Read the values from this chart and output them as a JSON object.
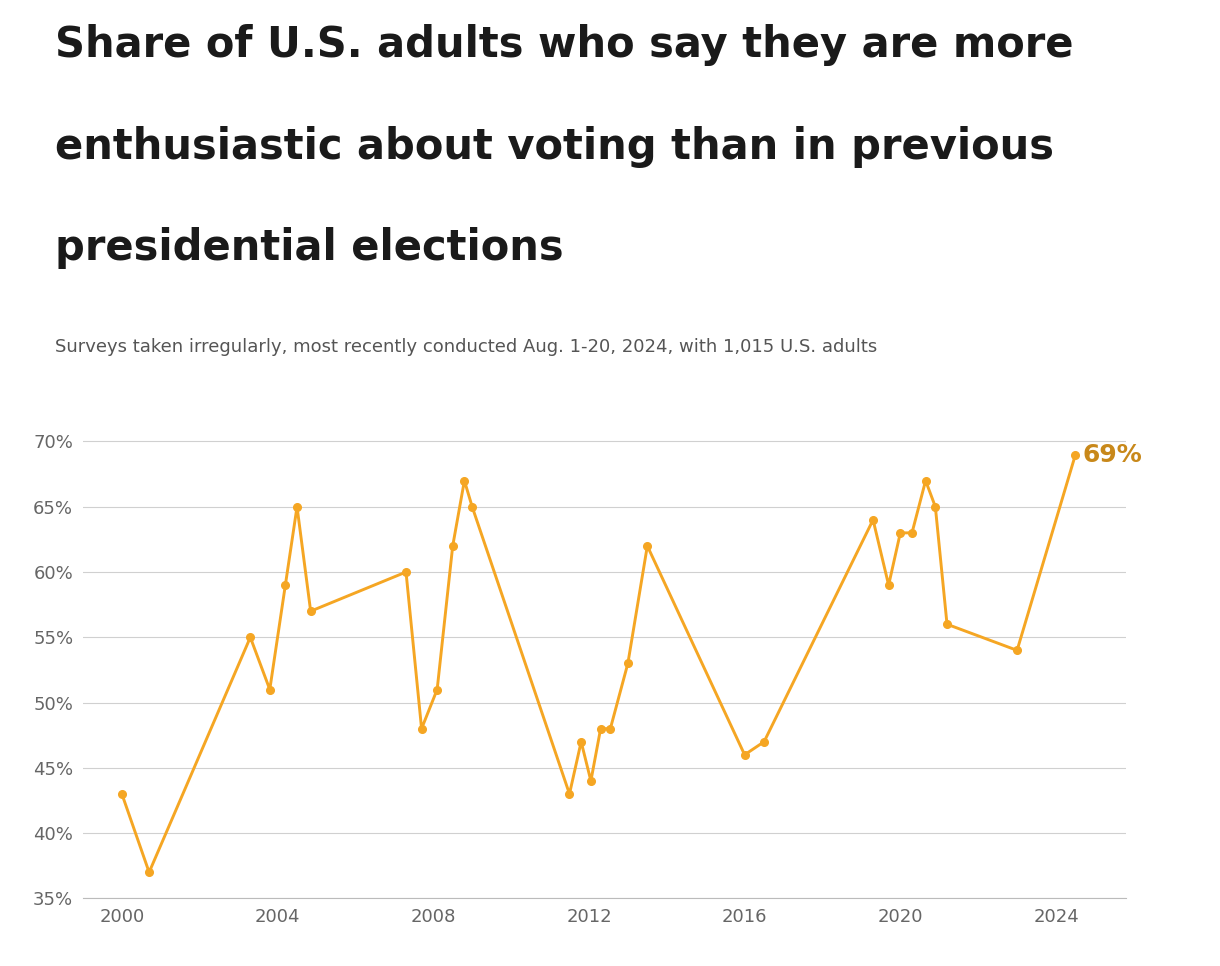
{
  "title_lines": [
    "Share of U.S. adults who say they are more",
    "enthusiastic about voting than in previous",
    "presidential elections"
  ],
  "subtitle": "Surveys taken irregularly, most recently conducted Aug. 1-20, 2024, with 1,015 U.S. adults",
  "points": [
    [
      2000.0,
      43
    ],
    [
      2000.7,
      37
    ],
    [
      2003.3,
      55
    ],
    [
      2003.8,
      51
    ],
    [
      2004.2,
      59
    ],
    [
      2004.5,
      65
    ],
    [
      2004.85,
      57
    ],
    [
      2007.3,
      60
    ],
    [
      2007.7,
      48
    ],
    [
      2008.1,
      51
    ],
    [
      2008.5,
      62
    ],
    [
      2008.8,
      67
    ],
    [
      2009.0,
      65
    ],
    [
      2011.5,
      43
    ],
    [
      2011.8,
      47
    ],
    [
      2012.05,
      44
    ],
    [
      2012.3,
      48
    ],
    [
      2012.55,
      48
    ],
    [
      2013.0,
      53
    ],
    [
      2013.5,
      62
    ],
    [
      2016.0,
      46
    ],
    [
      2016.5,
      47
    ],
    [
      2019.3,
      64
    ],
    [
      2019.7,
      59
    ],
    [
      2020.0,
      63
    ],
    [
      2020.3,
      63
    ],
    [
      2020.65,
      67
    ],
    [
      2020.9,
      65
    ],
    [
      2021.2,
      56
    ],
    [
      2023.0,
      54
    ],
    [
      2024.5,
      69
    ]
  ],
  "line_color": "#F5A623",
  "bg_color": "#ffffff",
  "ylim": [
    35,
    72
  ],
  "yticks": [
    35,
    40,
    45,
    50,
    55,
    60,
    65,
    70
  ],
  "ytick_labels": [
    "35%",
    "40%",
    "45%",
    "50%",
    "55%",
    "60%",
    "65%",
    "70%"
  ],
  "xticks": [
    2000,
    2004,
    2008,
    2012,
    2016,
    2020,
    2024
  ],
  "xlim": [
    1999.0,
    2025.8
  ],
  "annotation_text": "69%",
  "annotation_color": "#C8881A",
  "title_fontsize": 30,
  "subtitle_fontsize": 13,
  "tick_fontsize": 13,
  "grid_color": "#d0d0d0",
  "title_color": "#1a1a1a",
  "subtitle_color": "#555555",
  "tick_color": "#666666"
}
